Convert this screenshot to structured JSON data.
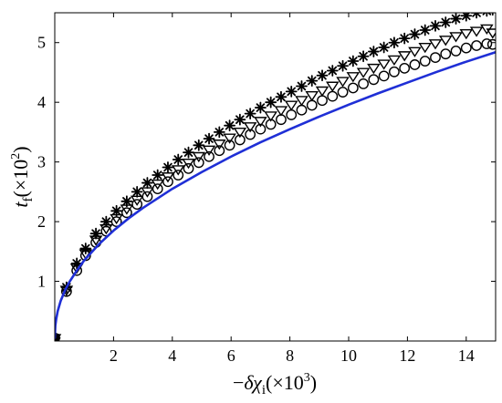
{
  "chart_data": {
    "type": "scatter",
    "title": "",
    "xlabel": {
      "prefix": "−",
      "symbol": "δχ",
      "subscript": "i",
      "scale": "(×10",
      "scale_exp": "3",
      "close": ")"
    },
    "ylabel": {
      "symbol": "t",
      "subscript": "f",
      "scale": "(×10",
      "scale_exp": "2",
      "close": ")"
    },
    "xlim": [
      0,
      15
    ],
    "ylim": [
      0,
      5.5
    ],
    "xticks": [
      2,
      4,
      6,
      8,
      10,
      12,
      14
    ],
    "yticks": [
      1,
      2,
      3,
      4,
      5
    ],
    "grid": false,
    "legend": "none",
    "series": [
      {
        "marker": "star",
        "color": "#000000",
        "x": [
          0.0,
          0.4,
          0.75,
          1.05,
          1.4,
          1.75,
          2.1,
          2.45,
          2.8,
          3.15,
          3.5,
          3.85,
          4.2,
          4.55,
          4.9,
          5.25,
          5.6,
          5.95,
          6.3,
          6.65,
          7.0,
          7.35,
          7.7,
          8.05,
          8.4,
          8.75,
          9.1,
          9.45,
          9.8,
          10.15,
          10.5,
          10.85,
          11.2,
          11.55,
          11.9,
          12.25,
          12.6,
          12.95,
          13.3,
          13.65,
          14.0,
          14.35,
          14.7,
          14.9
        ],
        "y": [
          0.05,
          0.9,
          1.3,
          1.55,
          1.8,
          2.0,
          2.18,
          2.34,
          2.5,
          2.65,
          2.78,
          2.91,
          3.04,
          3.16,
          3.28,
          3.39,
          3.5,
          3.61,
          3.71,
          3.81,
          3.91,
          4.0,
          4.09,
          4.18,
          4.27,
          4.36,
          4.45,
          4.53,
          4.61,
          4.69,
          4.77,
          4.85,
          4.92,
          5.0,
          5.07,
          5.14,
          5.21,
          5.28,
          5.34,
          5.4,
          5.45,
          5.5,
          5.53,
          5.55
        ]
      },
      {
        "marker": "triangle-down",
        "color": "#000000",
        "x": [
          0.0,
          0.4,
          0.75,
          1.05,
          1.4,
          1.75,
          2.1,
          2.45,
          2.8,
          3.15,
          3.5,
          3.85,
          4.2,
          4.55,
          4.9,
          5.25,
          5.6,
          5.95,
          6.3,
          6.65,
          7.0,
          7.35,
          7.7,
          8.05,
          8.4,
          8.75,
          9.1,
          9.45,
          9.8,
          10.15,
          10.5,
          10.85,
          11.2,
          11.55,
          11.9,
          12.25,
          12.6,
          12.95,
          13.3,
          13.65,
          14.0,
          14.35,
          14.7,
          14.9
        ],
        "y": [
          0.05,
          0.86,
          1.23,
          1.47,
          1.7,
          1.89,
          2.06,
          2.22,
          2.37,
          2.51,
          2.64,
          2.76,
          2.88,
          2.99,
          3.1,
          3.21,
          3.31,
          3.41,
          3.51,
          3.6,
          3.69,
          3.78,
          3.87,
          3.96,
          4.04,
          4.12,
          4.2,
          4.28,
          4.36,
          4.44,
          4.51,
          4.58,
          4.65,
          4.72,
          4.79,
          4.86,
          4.93,
          4.99,
          5.05,
          5.11,
          5.16,
          5.2,
          5.24,
          5.17
        ]
      },
      {
        "marker": "circle",
        "color": "#000000",
        "x": [
          0.0,
          0.4,
          0.75,
          1.05,
          1.4,
          1.75,
          2.1,
          2.45,
          2.8,
          3.15,
          3.5,
          3.85,
          4.2,
          4.55,
          4.9,
          5.25,
          5.6,
          5.95,
          6.3,
          6.65,
          7.0,
          7.35,
          7.7,
          8.05,
          8.4,
          8.75,
          9.1,
          9.45,
          9.8,
          10.15,
          10.5,
          10.85,
          11.2,
          11.55,
          11.9,
          12.25,
          12.6,
          12.95,
          13.3,
          13.65,
          14.0,
          14.35,
          14.7,
          14.9
        ],
        "y": [
          0.05,
          0.83,
          1.18,
          1.43,
          1.65,
          1.84,
          2.0,
          2.15,
          2.29,
          2.42,
          2.55,
          2.67,
          2.78,
          2.89,
          2.99,
          3.09,
          3.19,
          3.28,
          3.37,
          3.46,
          3.55,
          3.63,
          3.71,
          3.79,
          3.87,
          3.95,
          4.03,
          4.1,
          4.17,
          4.24,
          4.31,
          4.38,
          4.44,
          4.51,
          4.57,
          4.63,
          4.69,
          4.75,
          4.81,
          4.86,
          4.91,
          4.95,
          4.98,
          4.97
        ]
      },
      {
        "marker": "line",
        "color": "#1f2fd6",
        "x": [
          0.0,
          0.02,
          0.05,
          0.1,
          0.2,
          0.35,
          0.5,
          0.75,
          1.0,
          1.5,
          2.0,
          2.5,
          3.0,
          4.0,
          5.0,
          6.0,
          7.0,
          8.0,
          9.0,
          10.0,
          11.0,
          12.0,
          13.0,
          14.0,
          15.0
        ],
        "y": [
          0.05,
          0.26,
          0.37,
          0.5,
          0.67,
          0.85,
          0.99,
          1.18,
          1.35,
          1.62,
          1.85,
          2.05,
          2.23,
          2.55,
          2.83,
          3.09,
          3.33,
          3.55,
          3.76,
          3.96,
          4.15,
          4.33,
          4.51,
          4.68,
          4.84
        ]
      }
    ]
  }
}
